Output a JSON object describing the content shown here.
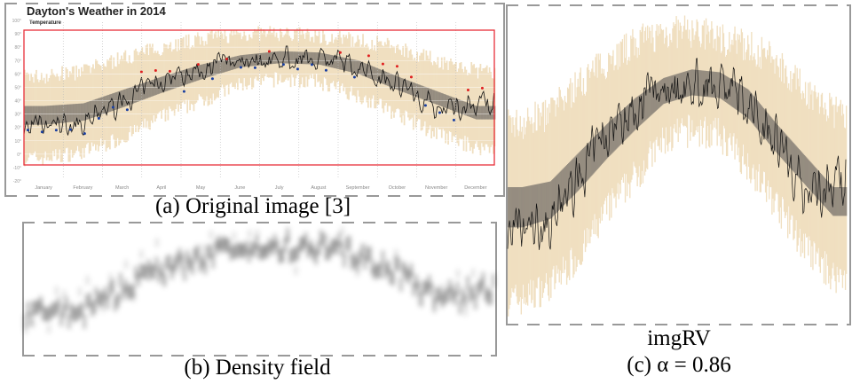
{
  "panels": {
    "a": {
      "caption": "(a) Original image [3]"
    },
    "b": {
      "caption": "(b) Density field"
    },
    "c": {
      "title": "imgRV",
      "caption": "(c) α = 0.86"
    }
  },
  "colors": {
    "record_band": "#f0dfc0",
    "normal_band": "#8a8378",
    "actual_line": "#111111",
    "record_high": "#e02020",
    "record_low": "#1a3fa0",
    "highlight_box": "#e8303a"
  },
  "chart_data": {
    "type": "area",
    "title": "Dayton's Weather in 2014",
    "subtitle": "Temperature",
    "y_ticks": [
      "100°",
      "90°",
      "80°",
      "70°",
      "60°",
      "50°",
      "40°",
      "30°",
      "20°",
      "10°",
      "0°",
      "-10°",
      "-20°"
    ],
    "ylim": [
      -20,
      100
    ],
    "categories": [
      "January",
      "February",
      "March",
      "April",
      "May",
      "June",
      "July",
      "August",
      "September",
      "October",
      "November",
      "December"
    ],
    "series": [
      {
        "key": "actual_mean",
        "values": [
          20,
          24,
          38,
          55,
          64,
          72,
          71,
          73,
          64,
          55,
          34,
          37
        ]
      },
      {
        "key": "normal_low",
        "values": [
          22,
          25,
          35,
          46,
          56,
          65,
          68,
          67,
          60,
          48,
          37,
          26
        ]
      },
      {
        "key": "normal_high",
        "values": [
          36,
          38,
          48,
          58,
          67,
          74,
          77,
          76,
          70,
          58,
          47,
          36
        ]
      },
      {
        "key": "record_low",
        "values": [
          -3,
          2,
          12,
          28,
          40,
          52,
          56,
          54,
          44,
          30,
          15,
          5
        ]
      },
      {
        "key": "record_high",
        "values": [
          58,
          62,
          72,
          80,
          86,
          90,
          90,
          88,
          85,
          80,
          70,
          62
        ]
      }
    ],
    "grid": true
  }
}
